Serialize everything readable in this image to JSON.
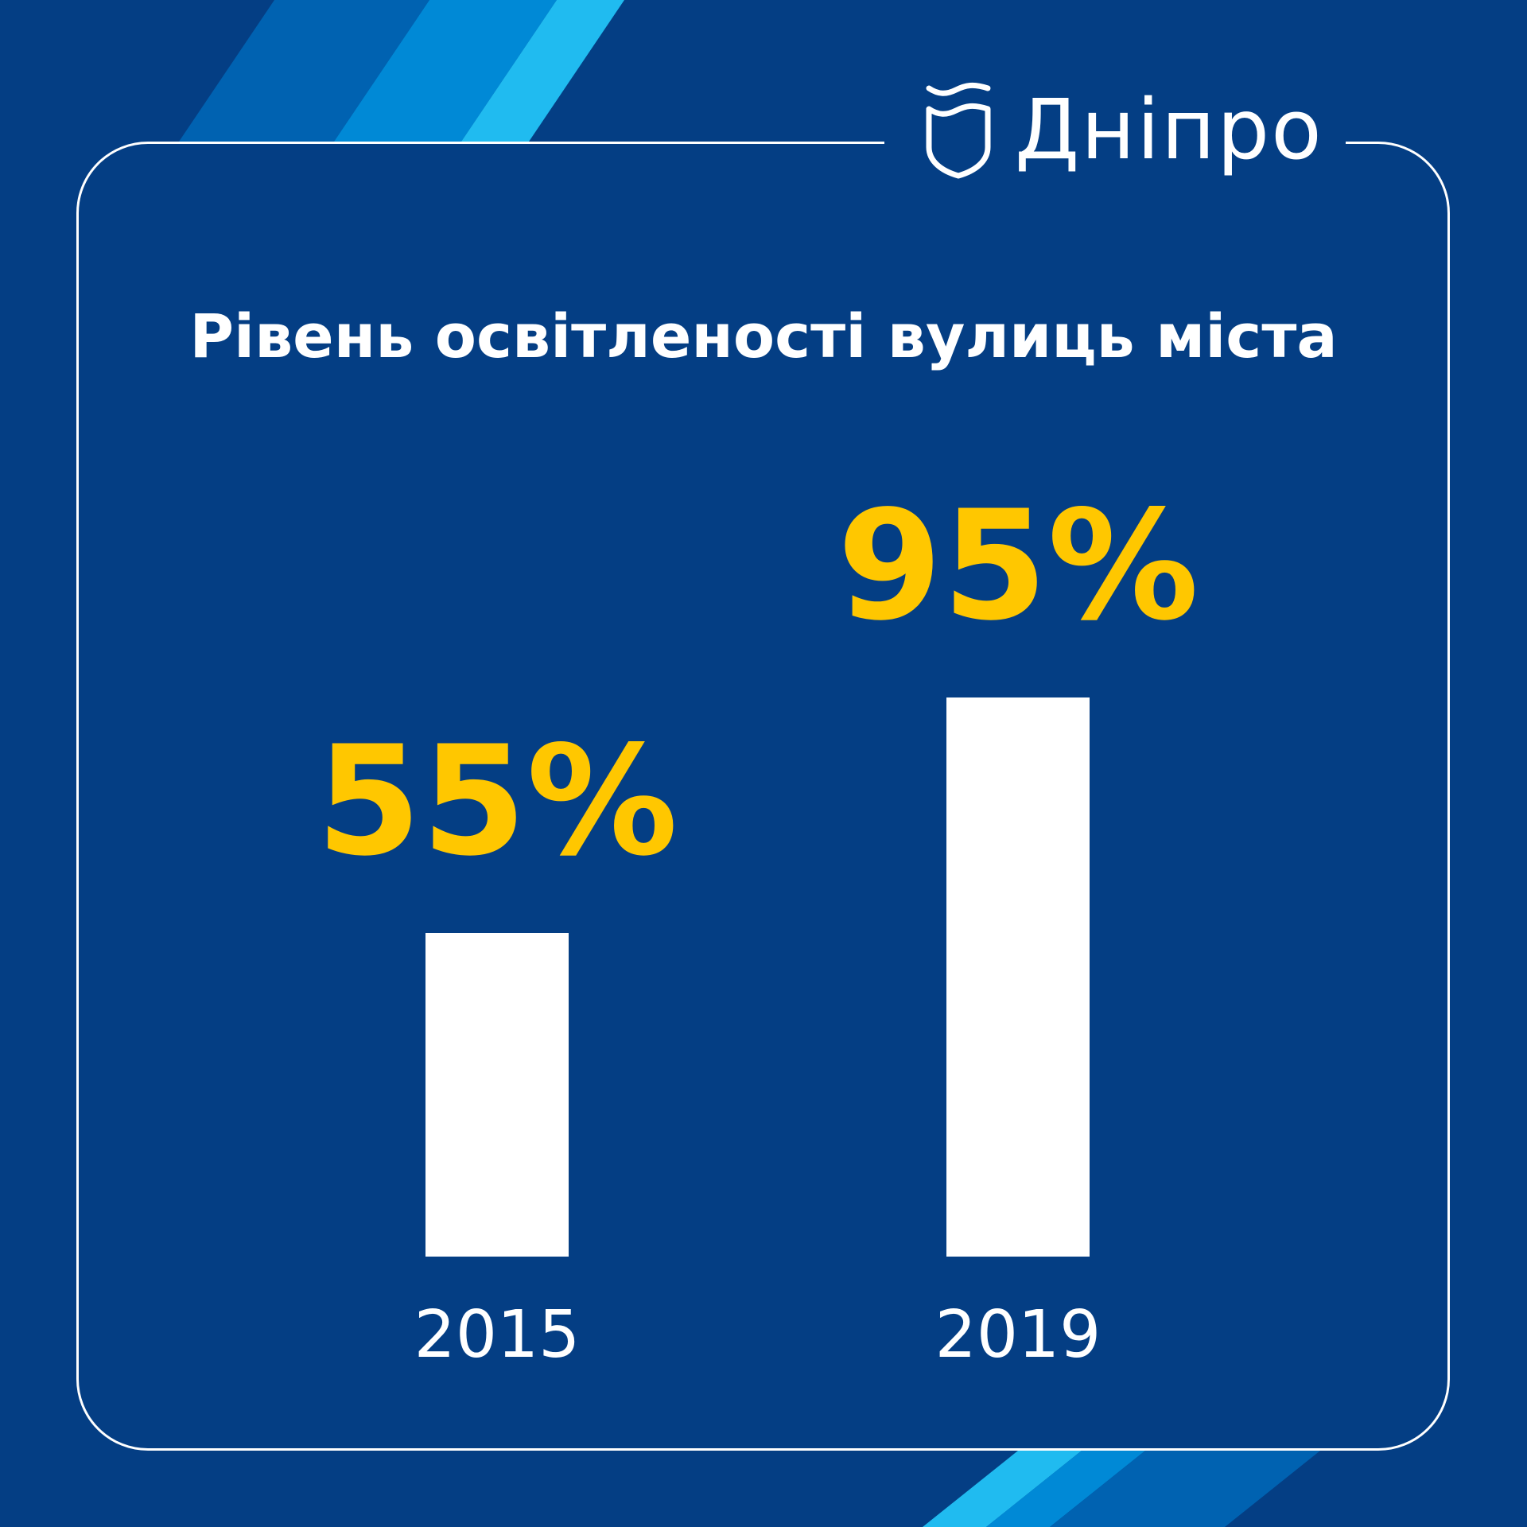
{
  "brand": {
    "name": "Дніпро",
    "colors": {
      "background": "#043e84",
      "accent": "#ffc700",
      "bar": "#ffffff",
      "stripe1": "#0062b1",
      "stripe2": "#0089d6",
      "stripe3": "#20bbf0"
    }
  },
  "chart_data": {
    "type": "bar",
    "title": "Рівень освітленості вулиць міста",
    "categories": [
      "2015",
      "2019"
    ],
    "values": [
      55,
      95
    ],
    "data_labels": [
      "55%",
      "95%"
    ],
    "ylim": [
      0,
      100
    ],
    "grid": false,
    "legend": "none"
  }
}
